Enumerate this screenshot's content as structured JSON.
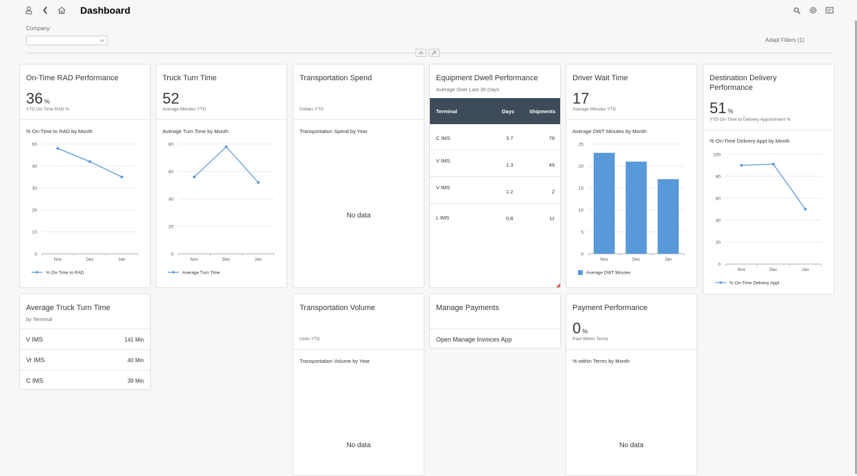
{
  "header": {
    "title": "Dashboard",
    "icons": [
      "user-icon",
      "back-icon",
      "home-icon",
      "search-icon",
      "gear-icon",
      "notifications-icon"
    ]
  },
  "filters": {
    "company_label": "Company:",
    "company_value": "",
    "adapt_filters": "Adapt Filters (1)"
  },
  "cards": {
    "ontime": {
      "title": "On-Time RAD Performance",
      "kpi": "36",
      "unit": "%",
      "kpi_label": "YTD On-Time RAD %",
      "chart_title": "% On-Time to RAD by Month",
      "legend": "% On-Time to RAD"
    },
    "turn": {
      "title": "Truck Turn Time",
      "kpi": "52",
      "kpi_label": "Average Minutes YTD",
      "chart_title": "Average Turn Time by Month",
      "legend": "Average Turn Time"
    },
    "spend": {
      "title": "Transportation Spend",
      "kpi_label": "Dollars YTD",
      "chart_title": "Transportation Spend by Year",
      "nodata": "No data"
    },
    "dwell": {
      "title": "Equipment Dwell Performance",
      "subtitle": "Average Over Last 30 Days",
      "columns": [
        "Terminal",
        "Days",
        "Shipments"
      ],
      "rows": [
        {
          "terminal": "C IMS",
          "days": "3.7",
          "shipments": "76"
        },
        {
          "terminal": "V IMS",
          "days": "1.3",
          "shipments": "49"
        },
        {
          "terminal": "V IMS",
          "days": "1.2",
          "shipments": "2"
        },
        {
          "terminal": "L IMS",
          "days": "0.8",
          "shipments": "11"
        }
      ]
    },
    "driver": {
      "title": "Driver Wait Time",
      "kpi": "17",
      "kpi_label": "Average Minutes YTD",
      "chart_title": "Average DWT Minutes by Month",
      "legend": "Average DWT Minutes"
    },
    "dest": {
      "title_line1": "Destination Delivery",
      "title_line2": "Performance",
      "kpi": "51",
      "unit": "%",
      "kpi_label": "YTD On-Time to Delivery Appointment %",
      "chart_title": "% On-Time Delivery Appt by Month",
      "legend": "% On-Time Delivery Appt"
    },
    "avgturn": {
      "title": "Average Truck Turn Time",
      "subtitle": "by Terminal",
      "rows": [
        {
          "name": "V IMS",
          "value": "141 Min"
        },
        {
          "name": "Vr IMS",
          "value": "40 Min"
        },
        {
          "name": "C IMS",
          "value": "39 Min"
        }
      ]
    },
    "volume": {
      "title": "Transportation Volume",
      "kpi_label": "Units YTD",
      "chart_title": "Transportation Volume by Year",
      "nodata": "No data"
    },
    "payments": {
      "title": "Manage Payments",
      "link": "Open Manage Invoices App"
    },
    "payperf": {
      "title": "Payment Performance",
      "kpi": "0",
      "unit": "%",
      "kpi_label": "Paid Within Terms",
      "chart_title": "% within Terms by Month",
      "nodata": "No data"
    }
  },
  "chart_data": [
    {
      "type": "line",
      "id": "ontime",
      "categories": [
        "Nov",
        "Dec",
        "Jan"
      ],
      "series": [
        {
          "name": "% On-Time to RAD",
          "values": [
            48,
            42,
            35
          ]
        }
      ],
      "ylim": [
        0,
        50
      ],
      "yticks": [
        0,
        10,
        20,
        30,
        40,
        50
      ],
      "color": "#5899da"
    },
    {
      "type": "line",
      "id": "turn",
      "categories": [
        "Nov",
        "Dec",
        "Jan"
      ],
      "series": [
        {
          "name": "Average Turn Time",
          "values": [
            56,
            78,
            52
          ]
        }
      ],
      "ylim": [
        0,
        80
      ],
      "yticks": [
        0,
        20,
        40,
        60,
        80
      ],
      "color": "#5899da"
    },
    {
      "type": "bar",
      "id": "driver",
      "categories": [
        "Nov",
        "Dec",
        "Jan"
      ],
      "series": [
        {
          "name": "Average DWT Minutes",
          "values": [
            23,
            21,
            17
          ]
        }
      ],
      "ylim": [
        0,
        25
      ],
      "yticks": [
        0,
        5,
        10,
        15,
        20,
        25
      ],
      "color": "#5899da"
    },
    {
      "type": "line",
      "id": "dest",
      "categories": [
        "Nov",
        "Dec",
        "Jan"
      ],
      "series": [
        {
          "name": "% On-Time Delivery Appt",
          "values": [
            90,
            91,
            50
          ]
        }
      ],
      "ylim": [
        0,
        100
      ],
      "yticks": [
        0,
        20,
        40,
        60,
        80,
        100
      ],
      "color": "#5899da"
    }
  ]
}
